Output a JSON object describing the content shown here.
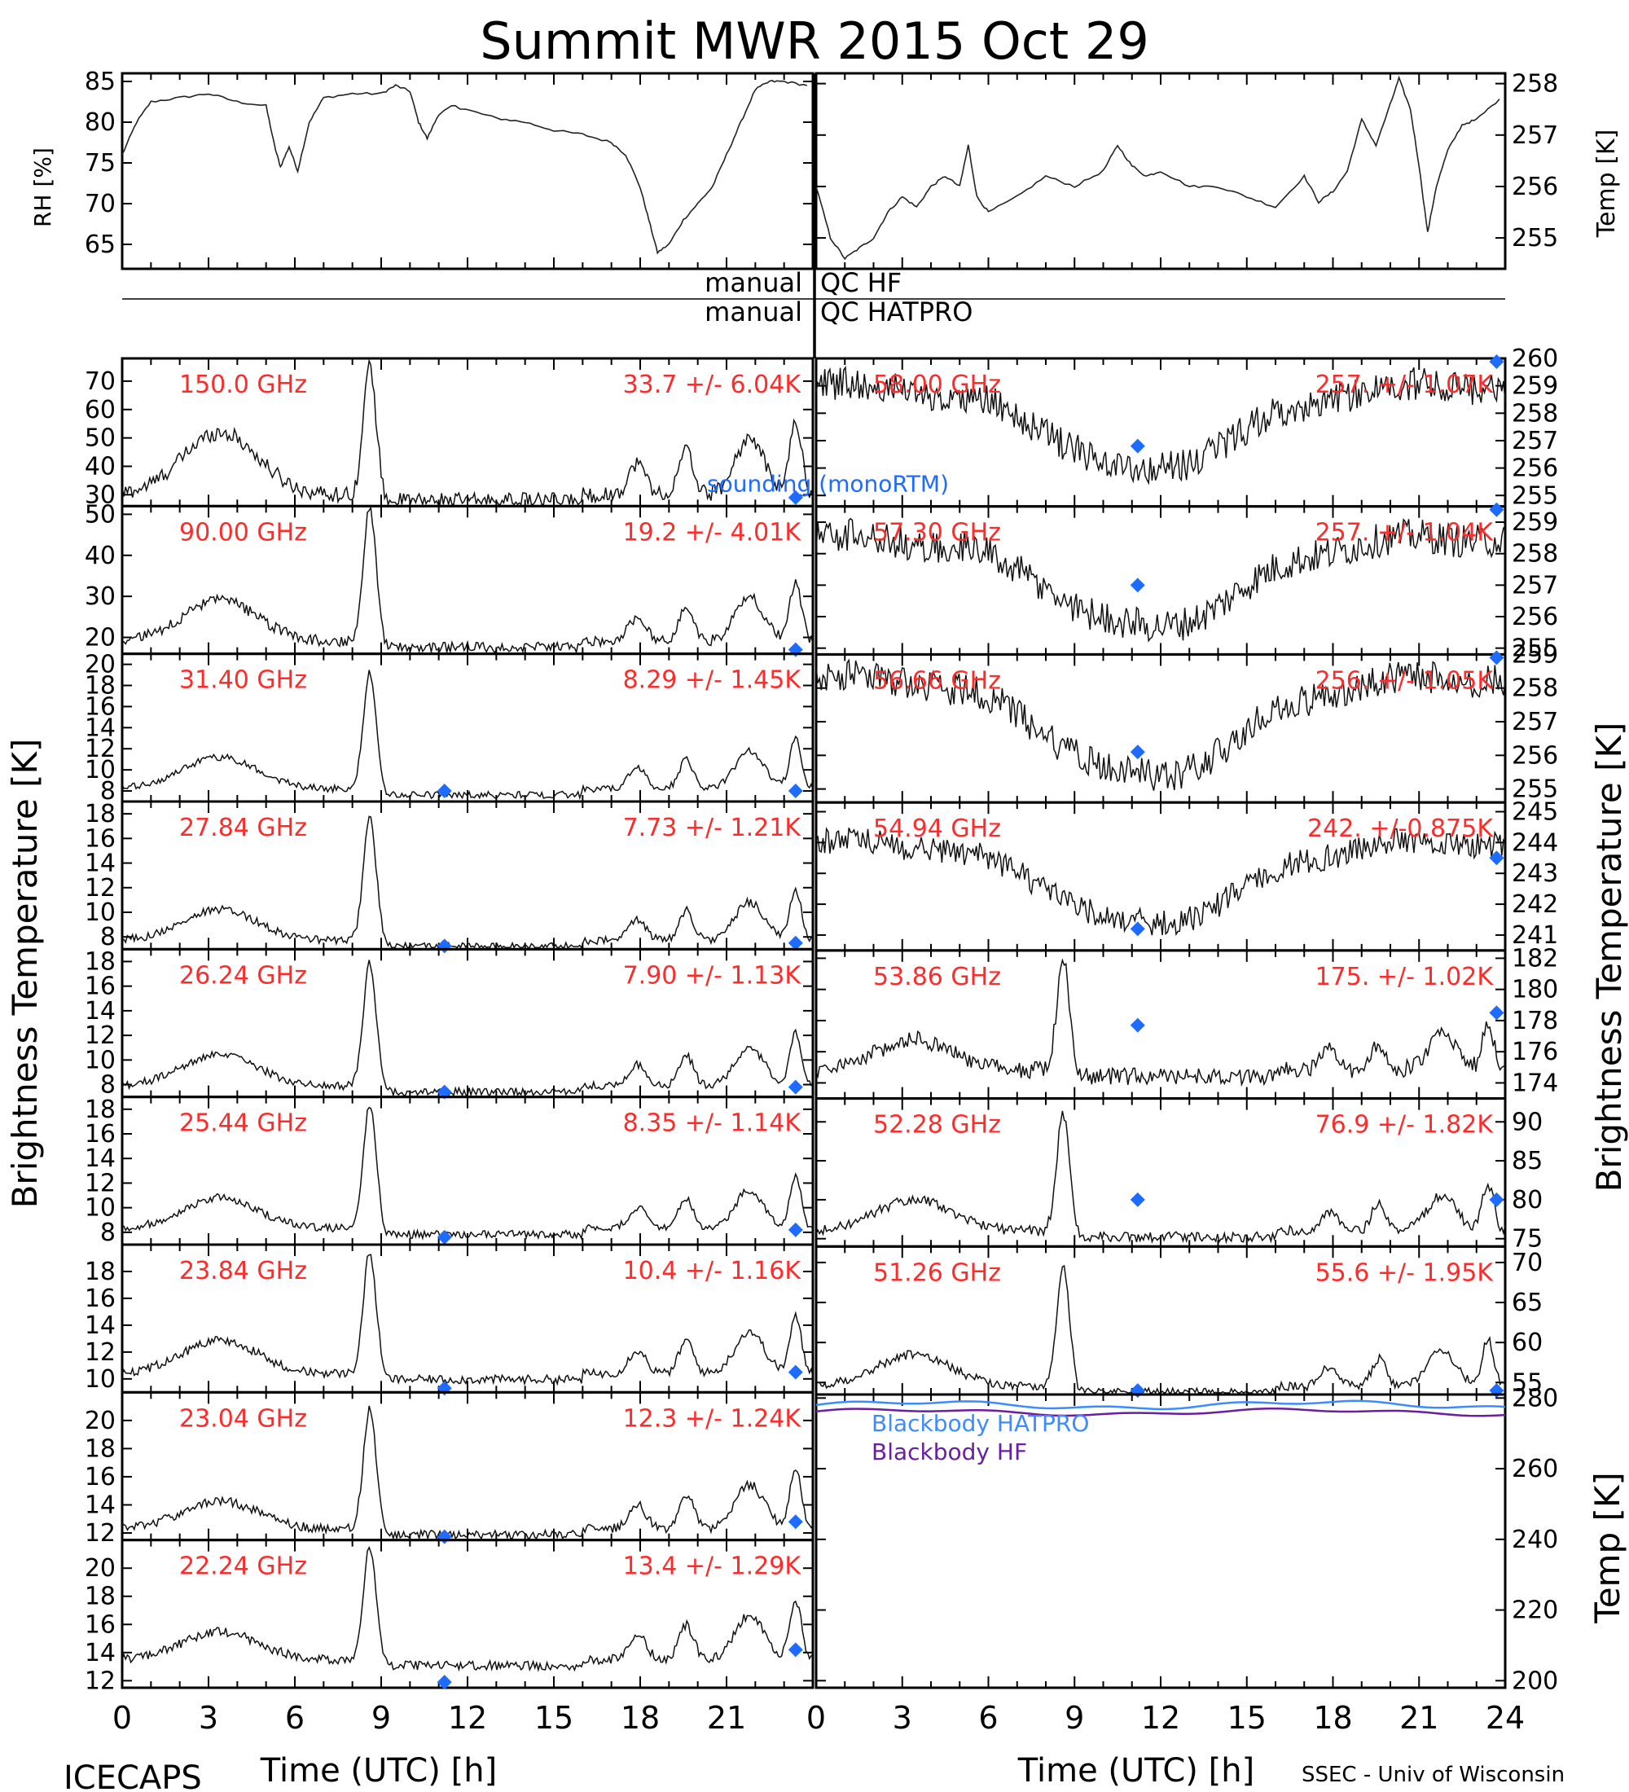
{
  "title": "Summit MWR 2015 Oct 29",
  "footer_left": "ICECAPS",
  "footer_right": "SSEC - Univ of Wisconsin",
  "colors": {
    "axes": "#000000",
    "label": "#ff2a2a",
    "marker": "#1e6cff",
    "hatpro": "#3c8cff",
    "hf": "#6a1fa0"
  },
  "qc": {
    "hf_text": "QC HF",
    "hatpro_text": "QC HATPRO",
    "left_text": "manual"
  },
  "axis_labels": {
    "left_y": "Brightness Temperature [K]",
    "right_y": "Brightness Temperature [K]",
    "x_left": "Time (UTC) [h]",
    "x_right": "Time (UTC) [h]",
    "rh": "RH [%]",
    "temp_top": "Temp [K]",
    "temp_bottom": "Temp [K]"
  },
  "x_ticks": [
    "0",
    "3",
    "6",
    "9",
    "12",
    "15",
    "18",
    "21",
    "24"
  ],
  "x_ticks_left": [
    "0",
    "3",
    "6",
    "9",
    "12",
    "15",
    "18",
    "21"
  ],
  "met_left": {
    "label": "RH [%]",
    "ylim": [
      62,
      86
    ],
    "ticks": [
      "65",
      "70",
      "75",
      "80",
      "85"
    ],
    "series": [
      [
        0,
        76
      ],
      [
        0.5,
        80
      ],
      [
        1,
        82.5
      ],
      [
        2,
        83
      ],
      [
        3,
        83.5
      ],
      [
        4,
        82.5
      ],
      [
        5,
        82
      ],
      [
        5.3,
        77
      ],
      [
        5.5,
        74.5
      ],
      [
        5.8,
        77
      ],
      [
        6.1,
        74
      ],
      [
        6.5,
        80
      ],
      [
        7,
        83
      ],
      [
        8,
        83.5
      ],
      [
        9,
        83.5
      ],
      [
        9.5,
        84.5
      ],
      [
        10,
        83.8
      ],
      [
        10.3,
        80
      ],
      [
        10.6,
        78
      ],
      [
        11,
        81
      ],
      [
        11.5,
        82
      ],
      [
        12,
        81.5
      ],
      [
        13,
        80.5
      ],
      [
        14,
        80
      ],
      [
        15,
        79
      ],
      [
        16,
        78.5
      ],
      [
        17,
        77.5
      ],
      [
        17.5,
        76
      ],
      [
        18,
        72
      ],
      [
        18.3,
        68
      ],
      [
        18.6,
        64
      ],
      [
        19,
        65
      ],
      [
        19.5,
        68
      ],
      [
        20,
        70
      ],
      [
        20.5,
        72
      ],
      [
        21,
        76
      ],
      [
        21.5,
        80
      ],
      [
        22,
        84
      ],
      [
        22.5,
        85
      ],
      [
        23,
        85
      ],
      [
        23.8,
        84.5
      ]
    ]
  },
  "met_right": {
    "label": "Temp [K]",
    "ylim": [
      254.4,
      258.2
    ],
    "ticks": [
      "255",
      "256",
      "257",
      "258"
    ],
    "series": [
      [
        0,
        256
      ],
      [
        0.5,
        255
      ],
      [
        1,
        254.6
      ],
      [
        1.5,
        254.8
      ],
      [
        2,
        255
      ],
      [
        2.5,
        255.5
      ],
      [
        3,
        255.8
      ],
      [
        3.5,
        255.6
      ],
      [
        4,
        256
      ],
      [
        4.5,
        256.2
      ],
      [
        5,
        256
      ],
      [
        5.3,
        256.8
      ],
      [
        5.6,
        255.8
      ],
      [
        6,
        255.5
      ],
      [
        7,
        255.8
      ],
      [
        8,
        256.2
      ],
      [
        9,
        256
      ],
      [
        10,
        256.3
      ],
      [
        10.5,
        256.8
      ],
      [
        11,
        256.4
      ],
      [
        11.5,
        256.2
      ],
      [
        12,
        256.3
      ],
      [
        13,
        256
      ],
      [
        14,
        256
      ],
      [
        15,
        255.8
      ],
      [
        16,
        255.6
      ],
      [
        17,
        256.2
      ],
      [
        17.5,
        255.7
      ],
      [
        18,
        255.9
      ],
      [
        18.5,
        256.3
      ],
      [
        19,
        257.3
      ],
      [
        19.5,
        256.8
      ],
      [
        20,
        257.6
      ],
      [
        20.3,
        258.1
      ],
      [
        20.7,
        257.5
      ],
      [
        21,
        256.4
      ],
      [
        21.3,
        255.1
      ],
      [
        21.6,
        256
      ],
      [
        22,
        256.7
      ],
      [
        22.5,
        257.2
      ],
      [
        23,
        257.3
      ],
      [
        23.8,
        257.7
      ]
    ]
  },
  "left_panels": [
    {
      "freq": "150.0 GHz",
      "stat": "33.7 +/-  6.04K",
      "ylim": [
        26,
        78
      ],
      "ticks": [
        "30",
        "40",
        "50",
        "60",
        "70"
      ],
      "base": 30,
      "hump": 22,
      "spike": 45,
      "tail": 22,
      "noise": 2.5,
      "markers": [
        [
          23.4,
          29
        ]
      ],
      "extra": "sounding (monoRTM)"
    },
    {
      "freq": "90.00 GHz",
      "stat": "19.2 +/-  4.01K",
      "ylim": [
        16,
        52
      ],
      "ticks": [
        "20",
        "30",
        "40",
        "50"
      ],
      "base": 19,
      "hump": 10,
      "spike": 33,
      "tail": 12,
      "noise": 1.2,
      "markers": [
        [
          23.4,
          17
        ]
      ]
    },
    {
      "freq": "31.40 GHz",
      "stat": "8.29 +/- 1.45K",
      "ylim": [
        7,
        21
      ],
      "ticks": [
        "8",
        "10",
        "12",
        "14",
        "16",
        "18",
        "20"
      ],
      "base": 8.2,
      "hump": 3,
      "spike": 11,
      "tail": 4,
      "noise": 0.3,
      "markers": [
        [
          11.2,
          8
        ],
        [
          23.4,
          8
        ]
      ]
    },
    {
      "freq": "27.84 GHz",
      "stat": "7.73 +/- 1.21K",
      "ylim": [
        7,
        19
      ],
      "ticks": [
        "8",
        "10",
        "12",
        "14",
        "16",
        "18"
      ],
      "base": 7.7,
      "hump": 2.5,
      "spike": 10,
      "tail": 3.5,
      "noise": 0.3,
      "markers": [
        [
          11.2,
          7.2
        ],
        [
          23.4,
          7.5
        ]
      ]
    },
    {
      "freq": "26.24 GHz",
      "stat": "7.90 +/- 1.13K",
      "ylim": [
        7,
        19
      ],
      "ticks": [
        "8",
        "10",
        "12",
        "14",
        "16",
        "18"
      ],
      "base": 7.9,
      "hump": 2.5,
      "spike": 10,
      "tail": 3.5,
      "noise": 0.3,
      "markers": [
        [
          11.2,
          7.4
        ],
        [
          23.4,
          7.8
        ]
      ]
    },
    {
      "freq": "25.44 GHz",
      "stat": "8.35 +/- 1.14K",
      "ylim": [
        7,
        19
      ],
      "ticks": [
        "8",
        "10",
        "12",
        "14",
        "16",
        "18"
      ],
      "base": 8.3,
      "hump": 2.5,
      "spike": 10,
      "tail": 3.5,
      "noise": 0.3,
      "markers": [
        [
          11.2,
          7.6
        ],
        [
          23.4,
          8.2
        ]
      ]
    },
    {
      "freq": "23.84 GHz",
      "stat": "10.4 +/- 1.16K",
      "ylim": [
        9,
        20
      ],
      "ticks": [
        "10",
        "12",
        "14",
        "16",
        "18"
      ],
      "base": 10.4,
      "hump": 2.5,
      "spike": 9,
      "tail": 3.5,
      "noise": 0.3,
      "markers": [
        [
          11.2,
          9.3
        ],
        [
          23.4,
          10.5
        ]
      ]
    },
    {
      "freq": "23.04 GHz",
      "stat": "12.3 +/- 1.24K",
      "ylim": [
        11.5,
        22
      ],
      "ticks": [
        "12",
        "14",
        "16",
        "18",
        "20"
      ],
      "base": 12.3,
      "hump": 2,
      "spike": 8.5,
      "tail": 3.5,
      "noise": 0.3,
      "markers": [
        [
          11.2,
          11.6
        ],
        [
          23.4,
          12.8
        ]
      ]
    },
    {
      "freq": "22.24 GHz",
      "stat": "13.4 +/- 1.29K",
      "ylim": [
        11.5,
        22
      ],
      "ticks": [
        "12",
        "14",
        "16",
        "18",
        "20"
      ],
      "base": 13.5,
      "hump": 2,
      "spike": 8,
      "tail": 3.5,
      "noise": 0.3,
      "markers": [
        [
          11.2,
          11.9
        ],
        [
          23.4,
          14.2
        ]
      ]
    }
  ],
  "right_panels": [
    {
      "freq": "58.00 GHz",
      "stat": "257. +/- 1.07K",
      "ylim": [
        254.6,
        260
      ],
      "ticks": [
        "255",
        "256",
        "257",
        "258",
        "259",
        "260"
      ],
      "mode": "deep",
      "top": 259,
      "low": 255.8,
      "noise": 0.5,
      "markers": [
        [
          11.2,
          256.8
        ],
        [
          23.7,
          260
        ]
      ]
    },
    {
      "freq": "57.30 GHz",
      "stat": "257. +/- 1.04K",
      "ylim": [
        254.8,
        259.5
      ],
      "ticks": [
        "255",
        "256",
        "257",
        "258",
        "259"
      ],
      "mode": "deep",
      "top": 258.5,
      "low": 255.5,
      "noise": 0.45,
      "markers": [
        [
          11.2,
          257
        ],
        [
          23.7,
          259.4
        ]
      ]
    },
    {
      "freq": "56.66 GHz",
      "stat": "256. +/- 1.05K",
      "ylim": [
        254.6,
        259
      ],
      "ticks": [
        "255",
        "256",
        "257",
        "258",
        "259"
      ],
      "mode": "deep",
      "top": 258.3,
      "low": 255.2,
      "noise": 0.4,
      "markers": [
        [
          11.2,
          256.1
        ],
        [
          23.7,
          259
        ]
      ]
    },
    {
      "freq": "54.94 GHz",
      "stat": "242. +/-0.875K",
      "ylim": [
        240.5,
        245.3
      ],
      "ticks": [
        "241",
        "242",
        "243",
        "244",
        "245"
      ],
      "mode": "deep",
      "top": 244,
      "low": 241.2,
      "noise": 0.35,
      "markers": [
        [
          11.2,
          241.2
        ],
        [
          23.7,
          243.5
        ]
      ]
    },
    {
      "freq": "53.86 GHz",
      "stat": "175. +/- 1.02K",
      "ylim": [
        173,
        182.5
      ],
      "ticks": [
        "174",
        "176",
        "178",
        "180",
        "182"
      ],
      "mode": "spike",
      "base": 174.8,
      "hump": 2,
      "spike": 7,
      "tail": 2.5,
      "noise": 0.5,
      "markers": [
        [
          11.2,
          177.7
        ],
        [
          23.7,
          178.5
        ]
      ]
    },
    {
      "freq": "52.28 GHz",
      "stat": "76.9 +/- 1.82K",
      "ylim": [
        74,
        93
      ],
      "ticks": [
        "75",
        "80",
        "85",
        "90"
      ],
      "mode": "spike",
      "base": 76,
      "hump": 4,
      "spike": 15,
      "tail": 5,
      "noise": 0.6,
      "markers": [
        [
          11.2,
          80
        ],
        [
          23.7,
          80
        ]
      ]
    },
    {
      "freq": "51.26 GHz",
      "stat": "55.6 +/- 1.95K",
      "ylim": [
        53.5,
        72
      ],
      "ticks": [
        "55",
        "60",
        "65",
        "70"
      ],
      "mode": "spike",
      "base": 54.5,
      "hump": 4,
      "spike": 15,
      "tail": 5,
      "noise": 0.5,
      "markers": [
        [
          11.2,
          54
        ],
        [
          23.7,
          54
        ]
      ]
    }
  ],
  "blackbody": {
    "ylim": [
      198,
      281
    ],
    "ticks": [
      "200",
      "220",
      "240",
      "260",
      "280"
    ],
    "hatpro_label": "Blackbody HATPRO",
    "hf_label": "Blackbody HF",
    "hatpro_value": 278,
    "hf_value": 276
  }
}
